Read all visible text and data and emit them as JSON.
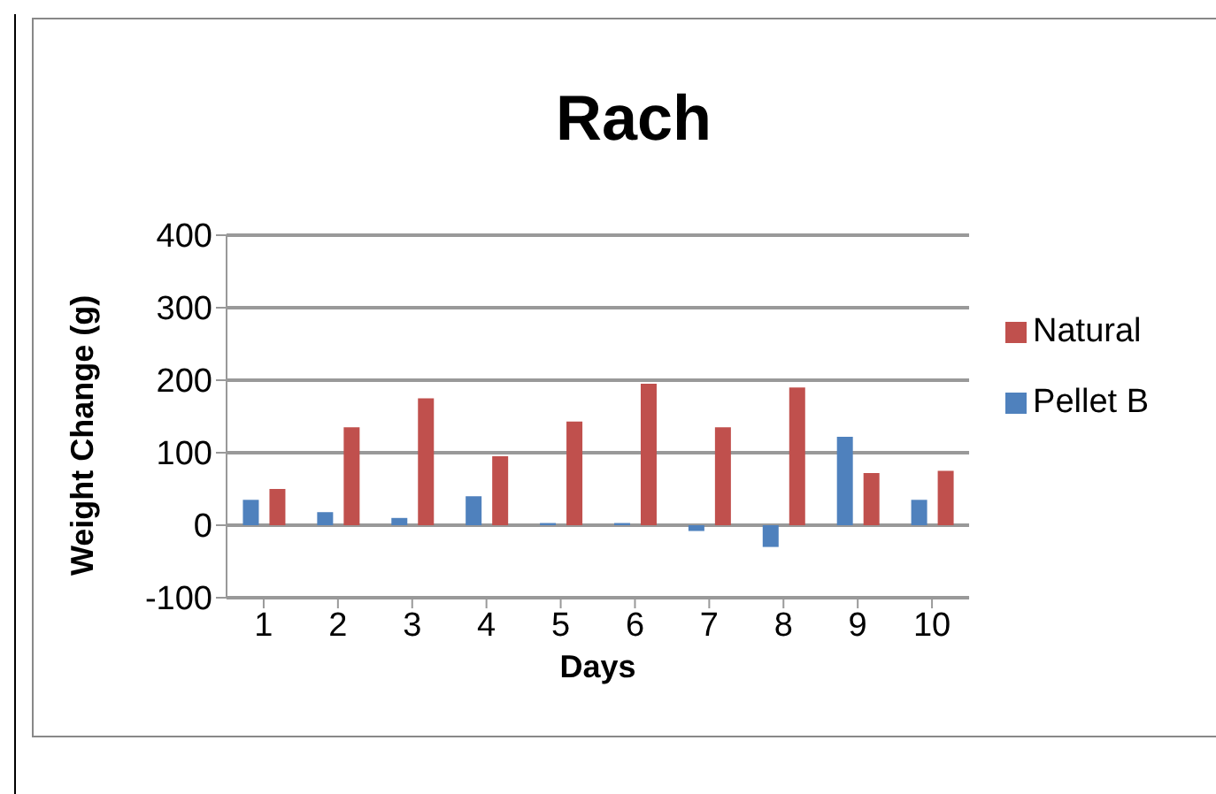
{
  "chart_data": {
    "type": "bar",
    "title": "Rach",
    "xlabel": "Days",
    "ylabel": "Weight Change (g)",
    "categories": [
      "1",
      "2",
      "3",
      "4",
      "5",
      "6",
      "7",
      "8",
      "9",
      "10"
    ],
    "series": [
      {
        "name": "Pellet B",
        "color": "#4f81bd",
        "values": [
          35,
          18,
          10,
          40,
          3,
          3,
          -8,
          -30,
          122,
          35
        ]
      },
      {
        "name": "Natural",
        "color": "#c0504d",
        "values": [
          50,
          135,
          175,
          95,
          143,
          195,
          135,
          190,
          72,
          75
        ]
      }
    ],
    "ylim": [
      -100,
      400
    ],
    "yticks": [
      -100,
      0,
      100,
      200,
      300,
      400
    ],
    "grid": "y",
    "legend": "right"
  }
}
